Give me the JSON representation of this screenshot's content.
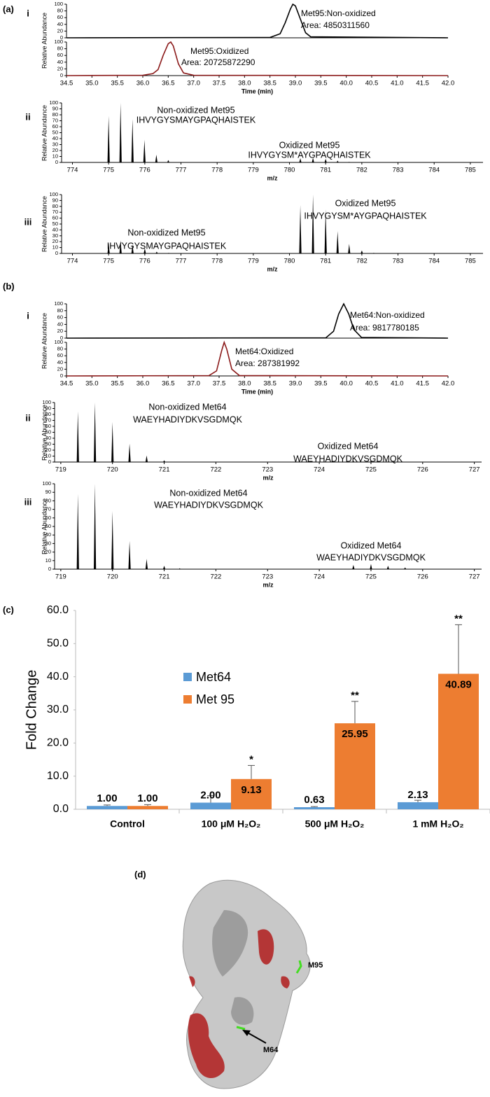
{
  "chart_data": [
    {
      "type": "line",
      "panel": "(a)",
      "subpanel": "i",
      "color": "#000000",
      "x": [
        34.5,
        38.5,
        38.7,
        38.8,
        38.9,
        38.95,
        39.0,
        39.1,
        39.2,
        39.3,
        42.0
      ],
      "values": [
        0,
        1,
        12,
        45,
        85,
        100,
        95,
        55,
        15,
        3,
        0
      ],
      "xlim": [
        34.5,
        42.0
      ],
      "ylim": [
        0,
        100
      ],
      "yticks": [
        0,
        20,
        40,
        60,
        80,
        100
      ],
      "annotations": [
        "Met95:Non-oxidized",
        "Area: 4850311560"
      ]
    },
    {
      "type": "line",
      "color": "#8b1a1a",
      "x": [
        34.5,
        36.0,
        36.2,
        36.3,
        36.4,
        36.5,
        36.55,
        36.6,
        36.7,
        36.8,
        37.0,
        42.0
      ],
      "values": [
        0,
        1,
        6,
        18,
        60,
        95,
        100,
        88,
        35,
        8,
        1,
        0
      ],
      "xlim": [
        34.5,
        42.0
      ],
      "ylim": [
        0,
        100
      ],
      "yticks": [
        0,
        20,
        40,
        60,
        80,
        100
      ],
      "xticks": [
        34.5,
        {
          "value": 35,
          "label": "35.0"
        },
        35.5,
        {
          "value": 36,
          "label": "36.0"
        },
        36.5,
        {
          "value": 37,
          "label": "37.0"
        },
        37.5,
        {
          "value": 38,
          "label": "38.0"
        },
        38.5,
        {
          "value": 39,
          "label": "39.0"
        },
        39.5,
        {
          "value": 40,
          "label": "40.0"
        },
        40.5,
        {
          "value": 41,
          "label": "41.0"
        },
        41.5,
        {
          "value": 42,
          "label": "42.0"
        }
      ],
      "xlabel": "Time (min)",
      "ylabel": "Relative Abundance",
      "annotations": [
        "Met95:Oxidized",
        "Area: 20725872290"
      ]
    },
    {
      "type": "stem",
      "subpanel": "ii",
      "color": "#000000",
      "x": [
        775.0,
        775.33,
        775.66,
        775.99,
        776.32,
        776.65,
        780.3,
        780.65,
        781.0,
        781.33,
        781.65
      ],
      "values": [
        78,
        100,
        73,
        38,
        13,
        4,
        7,
        8,
        6,
        3,
        1
      ],
      "xlim": [
        773.7,
        785.35
      ],
      "ylim": [
        0,
        100
      ],
      "yticks": [
        0,
        10,
        20,
        30,
        40,
        50,
        60,
        70,
        80,
        90,
        100
      ],
      "xticks": [
        774,
        775,
        776,
        777,
        778,
        779,
        780,
        781,
        782,
        783,
        784,
        785
      ],
      "xlabel": "m/z",
      "ylabel": "Relative Abundance",
      "annotations": [
        [
          "Non-oxidized Met95",
          "IHVYGYSMAYGPAQHAISTEK"
        ],
        [
          "Oxidized Met95",
          "IHVYGYSM*AYGPAQHAISTEK"
        ]
      ]
    },
    {
      "type": "stem",
      "subpanel": "iii",
      "color": "#000000",
      "x": [
        775.0,
        775.33,
        775.66,
        776.0,
        776.33,
        776.66,
        780.3,
        780.65,
        781.0,
        781.33,
        781.65,
        782.0,
        782.33
      ],
      "values": [
        17,
        22,
        15,
        9,
        3,
        1,
        82,
        100,
        75,
        38,
        16,
        5,
        1
      ],
      "xlim": [
        773.7,
        785.35
      ],
      "ylim": [
        0,
        100
      ],
      "yticks": [
        0,
        10,
        20,
        30,
        40,
        50,
        60,
        70,
        80,
        90,
        100
      ],
      "xticks": [
        774,
        775,
        776,
        777,
        778,
        779,
        780,
        781,
        782,
        783,
        784,
        785
      ],
      "xlabel": "m/z",
      "ylabel": "Relative Abundance",
      "annotations": [
        [
          "Non-oxidized Met95",
          "IHVYGYSMAYGPAQHAISTEK"
        ],
        [
          "Oxidized Met95",
          "IHVYGYSM*AYGPAQHAISTEK"
        ]
      ]
    },
    {
      "type": "line",
      "panel": "(b)",
      "subpanel": "i",
      "color": "#000000",
      "x": [
        34.5,
        39.6,
        39.75,
        39.85,
        39.95,
        40.05,
        40.15,
        40.3,
        42.0
      ],
      "values": [
        0,
        1,
        20,
        70,
        100,
        70,
        25,
        2,
        0
      ],
      "xlim": [
        34.5,
        42.0
      ],
      "ylim": [
        0,
        100
      ],
      "yticks": [
        0,
        20,
        40,
        60,
        80,
        100
      ],
      "annotations": [
        "Met64:Non-oxidized",
        "Area: 9817780185"
      ]
    },
    {
      "type": "line",
      "color": "#8b1a1a",
      "x": [
        34.5,
        37.3,
        37.45,
        37.55,
        37.6,
        37.65,
        37.75,
        37.9,
        42.0
      ],
      "values": [
        0,
        1,
        15,
        75,
        100,
        80,
        20,
        1,
        0
      ],
      "xlim": [
        34.5,
        42.0
      ],
      "ylim": [
        0,
        100
      ],
      "yticks": [
        0,
        20,
        40,
        60,
        80,
        100
      ],
      "xticks": [
        34.5,
        {
          "value": 35,
          "label": "35.0"
        },
        35.5,
        {
          "value": 36,
          "label": "36.0"
        },
        36.5,
        {
          "value": 37,
          "label": "37.0"
        },
        37.5,
        {
          "value": 38,
          "label": "38.0"
        },
        38.5,
        {
          "value": 39,
          "label": "39.0"
        },
        39.5,
        {
          "value": 40,
          "label": "40.0"
        },
        40.5,
        {
          "value": 41,
          "label": "41.0"
        },
        41.5,
        {
          "value": 42,
          "label": "42.0"
        }
      ],
      "xlabel": "Time (min)",
      "ylabel": "Relative Abundance",
      "annotations": [
        "Met64:Oxidized",
        "Area: 287381992"
      ]
    },
    {
      "type": "stem",
      "subpanel": "ii",
      "color": "#000000",
      "x": [
        719.33,
        719.66,
        720.0,
        720.33,
        720.66,
        721.0,
        724.66,
        725.0,
        725.33
      ],
      "values": [
        85,
        100,
        67,
        31,
        11,
        3,
        2,
        2,
        1
      ],
      "xlim": [
        718.88,
        727.14
      ],
      "ylim": [
        0,
        100
      ],
      "yticks": [
        0,
        10,
        20,
        30,
        40,
        50,
        60,
        70,
        80,
        90,
        100
      ],
      "xticks": [
        719,
        720,
        721,
        722,
        723,
        724,
        725,
        726,
        727
      ],
      "xlabel": "m/z",
      "ylabel": "Relative Abundance",
      "annotations": [
        [
          "Non-oxidized Met64",
          "WAEYHADIYDKVSGDMQK"
        ],
        [
          "Oxidized Met64",
          "WAEYHADIYDKVSGDMQK"
        ]
      ]
    },
    {
      "type": "stem",
      "subpanel": "iii",
      "color": "#000000",
      "x": [
        719.33,
        719.66,
        720.0,
        720.33,
        720.66,
        721.0,
        721.3,
        724.66,
        725.0,
        725.33,
        725.66
      ],
      "values": [
        88,
        100,
        68,
        33,
        12,
        4,
        1,
        5,
        6,
        4,
        2
      ],
      "xlim": [
        718.88,
        727.14
      ],
      "ylim": [
        0,
        100
      ],
      "yticks": [
        0,
        10,
        20,
        30,
        40,
        50,
        60,
        70,
        80,
        90,
        100
      ],
      "xticks": [
        719,
        720,
        721,
        722,
        723,
        724,
        725,
        726,
        727
      ],
      "xlabel": "m/z",
      "ylabel": "Relative Abundance",
      "annotations": [
        [
          "Non-oxidized Met64",
          "WAEYHADIYDKVSGDMQK"
        ],
        [
          "Oxidized Met64",
          "WAEYHADIYDKVSGDMQK"
        ]
      ]
    },
    {
      "type": "bar",
      "panel": "(c)",
      "categories": [
        "Control",
        "100 μM H₂O₂",
        "500 μM H₂O₂",
        "1 mM H₂O₂"
      ],
      "series": [
        {
          "name": "Met64",
          "color": "#5b9bd5",
          "values": [
            1.0,
            2.0,
            0.63,
            2.13
          ],
          "value_labels": [
            "1.00",
            "2.00",
            "0.63",
            "2.13"
          ],
          "errors": [
            0.3,
            2.1,
            0.2,
            0.6
          ]
        },
        {
          "name": "Met 95",
          "color": "#ed7d31",
          "values": [
            1.0,
            9.13,
            25.95,
            40.89
          ],
          "value_labels": [
            "1.00",
            "9.13",
            "25.95",
            "40.89"
          ],
          "errors": [
            0.4,
            4.1,
            6.6,
            14.8
          ],
          "significance": [
            null,
            "*",
            "**",
            "**"
          ]
        }
      ],
      "ylim": [
        0,
        60
      ],
      "yticks": [
        {
          "value": 0,
          "label": "0.0"
        },
        {
          "value": 10,
          "label": "10.0"
        },
        {
          "value": 20,
          "label": "20.0"
        },
        {
          "value": 30,
          "label": "30.0"
        },
        {
          "value": 40,
          "label": "40.0"
        },
        {
          "value": 50,
          "label": "50.0"
        },
        {
          "value": 60,
          "label": "60.0"
        }
      ],
      "ylabel": "Fold Change"
    }
  ],
  "structure": {
    "panel": "(d)",
    "labels": [
      "M95",
      "M64"
    ]
  }
}
